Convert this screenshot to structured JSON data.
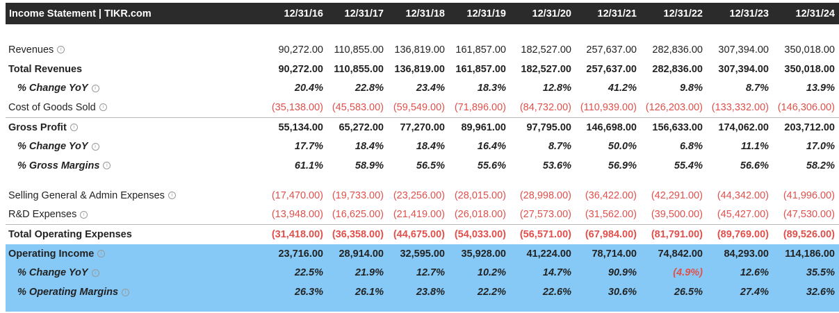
{
  "title": "Income Statement | TIKR.com",
  "columns": [
    "12/31/16",
    "12/31/17",
    "12/31/18",
    "12/31/19",
    "12/31/20",
    "12/31/21",
    "12/31/22",
    "12/31/23",
    "12/31/24"
  ],
  "colors": {
    "header_bg": "#2b2b2b",
    "negative": "#e0504c",
    "highlight": "#86c9f6"
  },
  "rows": [
    {
      "label": "Revenues",
      "style": "normal",
      "info": true,
      "values": [
        "90,272.00",
        "110,855.00",
        "136,819.00",
        "161,857.00",
        "182,527.00",
        "257,637.00",
        "282,836.00",
        "307,394.00",
        "350,018.00"
      ]
    },
    {
      "label": "Total Revenues",
      "style": "bold",
      "info": false,
      "values": [
        "90,272.00",
        "110,855.00",
        "136,819.00",
        "161,857.00",
        "182,527.00",
        "257,637.00",
        "282,836.00",
        "307,394.00",
        "350,018.00"
      ]
    },
    {
      "label": "% Change YoY",
      "style": "pct",
      "info": true,
      "values": [
        "20.4%",
        "22.8%",
        "23.4%",
        "18.3%",
        "12.8%",
        "41.2%",
        "9.8%",
        "8.7%",
        "13.9%"
      ]
    },
    {
      "label": "Cost of Goods Sold",
      "style": "normal",
      "info": true,
      "values": [
        "(35,138.00)",
        "(45,583.00)",
        "(59,549.00)",
        "(71,896.00)",
        "(84,732.00)",
        "(110,939.00)",
        "(126,203.00)",
        "(133,332.00)",
        "(146,306.00)"
      ]
    },
    {
      "label": "Gross Profit",
      "style": "bold",
      "info": true,
      "topline": true,
      "values": [
        "55,134.00",
        "65,272.00",
        "77,270.00",
        "89,961.00",
        "97,795.00",
        "146,698.00",
        "156,633.00",
        "174,062.00",
        "203,712.00"
      ]
    },
    {
      "label": "% Change YoY",
      "style": "pct",
      "info": true,
      "values": [
        "17.7%",
        "18.4%",
        "18.4%",
        "16.4%",
        "8.7%",
        "50.0%",
        "6.8%",
        "11.1%",
        "17.0%"
      ]
    },
    {
      "label": "% Gross Margins",
      "style": "pct",
      "info": true,
      "values": [
        "61.1%",
        "58.9%",
        "56.5%",
        "55.6%",
        "53.6%",
        "56.9%",
        "55.4%",
        "56.6%",
        "58.2%"
      ]
    },
    {
      "spacer": true
    },
    {
      "label": "Selling General & Admin Expenses",
      "style": "normal",
      "info": true,
      "values": [
        "(17,470.00)",
        "(19,733.00)",
        "(23,256.00)",
        "(28,015.00)",
        "(28,998.00)",
        "(36,422.00)",
        "(42,291.00)",
        "(44,342.00)",
        "(41,996.00)"
      ]
    },
    {
      "label": "R&D Expenses",
      "style": "normal",
      "info": true,
      "values": [
        "(13,948.00)",
        "(16,625.00)",
        "(21,419.00)",
        "(26,018.00)",
        "(27,573.00)",
        "(31,562.00)",
        "(39,500.00)",
        "(45,427.00)",
        "(47,530.00)"
      ]
    },
    {
      "label": "Total Operating Expenses",
      "style": "bold",
      "info": false,
      "topline": true,
      "values": [
        "(31,418.00)",
        "(36,358.00)",
        "(44,675.00)",
        "(54,033.00)",
        "(56,571.00)",
        "(67,984.00)",
        "(81,791.00)",
        "(89,769.00)",
        "(89,526.00)"
      ]
    },
    {
      "label": "Operating Income",
      "style": "bold",
      "info": true,
      "highlight": true,
      "values": [
        "23,716.00",
        "28,914.00",
        "32,595.00",
        "35,928.00",
        "41,224.00",
        "78,714.00",
        "74,842.00",
        "84,293.00",
        "114,186.00"
      ]
    },
    {
      "label": "% Change YoY",
      "style": "pct",
      "info": true,
      "highlight": true,
      "values": [
        "22.5%",
        "21.9%",
        "12.7%",
        "10.2%",
        "14.7%",
        "90.9%",
        "(4.9%)",
        "12.6%",
        "35.5%"
      ]
    },
    {
      "label": "% Operating Margins",
      "style": "pct",
      "info": true,
      "highlight": true,
      "values": [
        "26.3%",
        "26.1%",
        "23.8%",
        "22.2%",
        "22.6%",
        "30.6%",
        "26.5%",
        "27.4%",
        "32.6%"
      ]
    }
  ]
}
